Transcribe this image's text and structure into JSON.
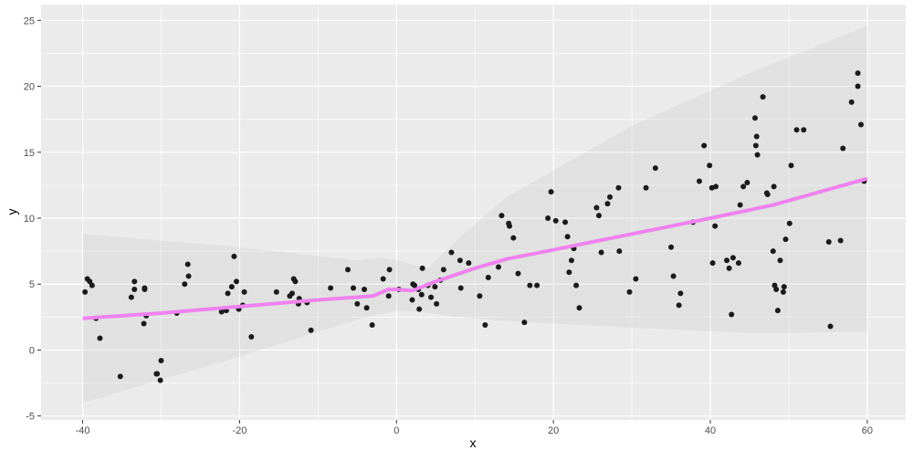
{
  "chart_data": {
    "type": "scatter",
    "title": "",
    "xlabel": "x",
    "ylabel": "y",
    "xlim": [
      -45.3,
      64.9
    ],
    "ylim": [
      -5.3,
      26.2
    ],
    "xticks": [
      -40,
      -20,
      0,
      20,
      40,
      60
    ],
    "yticks": [
      -5,
      0,
      5,
      10,
      15,
      20,
      25
    ],
    "grid": true,
    "colors": {
      "panel": "#EBEBEB",
      "grid": "#FFFFFF",
      "points": "#1A1A1A",
      "smooth": "#EE82EE",
      "band": "#D9D9D9"
    },
    "points": [
      [
        -39.7,
        4.4
      ],
      [
        -39.4,
        5.4
      ],
      [
        -39.1,
        5.2
      ],
      [
        -38.8,
        4.9
      ],
      [
        -38.3,
        2.4
      ],
      [
        -37.8,
        0.9
      ],
      [
        -35.2,
        -2.0
      ],
      [
        -33.8,
        4.0
      ],
      [
        -33.4,
        5.2
      ],
      [
        -33.4,
        4.6
      ],
      [
        -32.2,
        2.0
      ],
      [
        -32.1,
        4.7
      ],
      [
        -32.1,
        4.6
      ],
      [
        -31.9,
        2.6
      ],
      [
        -30.6,
        -1.8
      ],
      [
        -30.5,
        -1.8
      ],
      [
        -30.1,
        -2.3
      ],
      [
        -30.0,
        -0.8
      ],
      [
        -28.0,
        2.8
      ],
      [
        -27.0,
        5.0
      ],
      [
        -26.6,
        6.5
      ],
      [
        -26.5,
        5.6
      ],
      [
        -22.3,
        2.9
      ],
      [
        -21.7,
        3.0
      ],
      [
        -21.5,
        4.3
      ],
      [
        -21.0,
        4.8
      ],
      [
        -20.7,
        7.1
      ],
      [
        -20.4,
        5.2
      ],
      [
        -20.1,
        3.1
      ],
      [
        -19.6,
        3.4
      ],
      [
        -19.4,
        4.4
      ],
      [
        -18.5,
        1.0
      ],
      [
        -15.3,
        4.4
      ],
      [
        -13.6,
        4.1
      ],
      [
        -13.3,
        4.3
      ],
      [
        -13.1,
        5.4
      ],
      [
        -12.9,
        5.2
      ],
      [
        -12.5,
        3.5
      ],
      [
        -12.4,
        3.9
      ],
      [
        -11.4,
        3.6
      ],
      [
        -10.9,
        1.5
      ],
      [
        -8.4,
        4.7
      ],
      [
        -6.2,
        6.1
      ],
      [
        -5.5,
        4.7
      ],
      [
        -5.0,
        3.5
      ],
      [
        -4.1,
        4.6
      ],
      [
        -3.8,
        3.2
      ],
      [
        -3.1,
        1.9
      ],
      [
        -1.7,
        5.4
      ],
      [
        -1.0,
        4.1
      ],
      [
        -0.9,
        6.1
      ],
      [
        0.3,
        4.6
      ],
      [
        2.0,
        3.8
      ],
      [
        2.1,
        5.0
      ],
      [
        2.3,
        4.9
      ],
      [
        2.8,
        4.6
      ],
      [
        2.9,
        3.1
      ],
      [
        3.2,
        4.2
      ],
      [
        3.3,
        6.2
      ],
      [
        4.0,
        4.9
      ],
      [
        4.4,
        4.0
      ],
      [
        4.9,
        4.8
      ],
      [
        5.1,
        3.5
      ],
      [
        5.6,
        5.3
      ],
      [
        6.0,
        6.1
      ],
      [
        7.0,
        7.4
      ],
      [
        8.1,
        6.8
      ],
      [
        8.2,
        4.7
      ],
      [
        9.2,
        6.6
      ],
      [
        10.6,
        4.1
      ],
      [
        11.3,
        1.9
      ],
      [
        11.7,
        5.5
      ],
      [
        13.0,
        6.3
      ],
      [
        13.4,
        10.2
      ],
      [
        14.3,
        9.6
      ],
      [
        14.4,
        9.4
      ],
      [
        14.9,
        8.5
      ],
      [
        15.5,
        5.8
      ],
      [
        16.3,
        2.1
      ],
      [
        17.0,
        4.9
      ],
      [
        17.9,
        4.9
      ],
      [
        19.3,
        10.0
      ],
      [
        19.7,
        12.0
      ],
      [
        20.3,
        9.8
      ],
      [
        21.5,
        9.7
      ],
      [
        21.8,
        8.6
      ],
      [
        22.0,
        5.9
      ],
      [
        22.3,
        6.8
      ],
      [
        22.6,
        7.7
      ],
      [
        22.9,
        4.9
      ],
      [
        23.3,
        3.2
      ],
      [
        25.5,
        10.8
      ],
      [
        25.8,
        10.2
      ],
      [
        26.1,
        7.4
      ],
      [
        26.9,
        11.1
      ],
      [
        27.2,
        11.6
      ],
      [
        28.3,
        12.3
      ],
      [
        28.4,
        7.5
      ],
      [
        29.7,
        4.4
      ],
      [
        30.5,
        5.4
      ],
      [
        31.8,
        12.3
      ],
      [
        33.0,
        13.8
      ],
      [
        35.0,
        7.8
      ],
      [
        35.3,
        5.6
      ],
      [
        36.0,
        3.4
      ],
      [
        36.2,
        4.3
      ],
      [
        37.8,
        9.7
      ],
      [
        38.6,
        12.8
      ],
      [
        39.2,
        15.5
      ],
      [
        39.9,
        14.0
      ],
      [
        40.2,
        12.3
      ],
      [
        40.3,
        6.6
      ],
      [
        40.6,
        9.4
      ],
      [
        40.7,
        12.4
      ],
      [
        42.1,
        6.8
      ],
      [
        42.4,
        6.2
      ],
      [
        42.7,
        2.7
      ],
      [
        42.9,
        7.0
      ],
      [
        43.6,
        6.6
      ],
      [
        43.8,
        11.0
      ],
      [
        44.2,
        12.4
      ],
      [
        44.7,
        12.7
      ],
      [
        45.7,
        17.6
      ],
      [
        45.8,
        15.5
      ],
      [
        45.9,
        16.2
      ],
      [
        46.0,
        14.8
      ],
      [
        46.7,
        19.2
      ],
      [
        47.2,
        11.9
      ],
      [
        47.3,
        11.8
      ],
      [
        48.0,
        7.5
      ],
      [
        48.1,
        12.4
      ],
      [
        48.2,
        4.9
      ],
      [
        48.4,
        4.6
      ],
      [
        48.6,
        3.0
      ],
      [
        48.9,
        6.8
      ],
      [
        49.3,
        4.4
      ],
      [
        49.4,
        4.8
      ],
      [
        49.6,
        8.4
      ],
      [
        50.1,
        9.6
      ],
      [
        50.3,
        14.0
      ],
      [
        51.0,
        16.7
      ],
      [
        51.9,
        16.7
      ],
      [
        55.1,
        8.2
      ],
      [
        55.3,
        1.8
      ],
      [
        56.6,
        8.3
      ],
      [
        56.9,
        15.3
      ],
      [
        58.0,
        18.8
      ],
      [
        58.8,
        21.0
      ],
      [
        58.8,
        20.0
      ],
      [
        59.2,
        17.1
      ],
      [
        59.6,
        12.8
      ]
    ],
    "smooth": [
      [
        -40,
        2.4
      ],
      [
        -30,
        2.8
      ],
      [
        -20,
        3.3
      ],
      [
        -10,
        3.8
      ],
      [
        -3,
        4.1
      ],
      [
        -1,
        4.6
      ],
      [
        0,
        4.6
      ],
      [
        2,
        4.5
      ],
      [
        5,
        5.2
      ],
      [
        10,
        6.2
      ],
      [
        14,
        6.9
      ],
      [
        20,
        7.6
      ],
      [
        30,
        8.8
      ],
      [
        40,
        10.0
      ],
      [
        48,
        11.0
      ],
      [
        60,
        13.0
      ]
    ],
    "band_upper": [
      [
        -40,
        8.8
      ],
      [
        -20,
        7.8
      ],
      [
        -5,
        6.8
      ],
      [
        -2,
        7.0
      ],
      [
        0,
        6.8
      ],
      [
        4,
        6.2
      ],
      [
        8,
        8.5
      ],
      [
        14,
        11.6
      ],
      [
        30,
        17.0
      ],
      [
        45,
        21.0
      ],
      [
        60,
        24.6
      ]
    ],
    "band_lower": [
      [
        -40,
        -4.0
      ],
      [
        -20,
        -0.5
      ],
      [
        -5,
        2.3
      ],
      [
        0,
        3.0
      ],
      [
        3,
        2.9
      ],
      [
        8,
        2.5
      ],
      [
        14,
        2.2
      ],
      [
        30,
        1.7
      ],
      [
        45,
        1.3
      ],
      [
        50,
        1.3
      ],
      [
        60,
        1.4
      ]
    ]
  }
}
